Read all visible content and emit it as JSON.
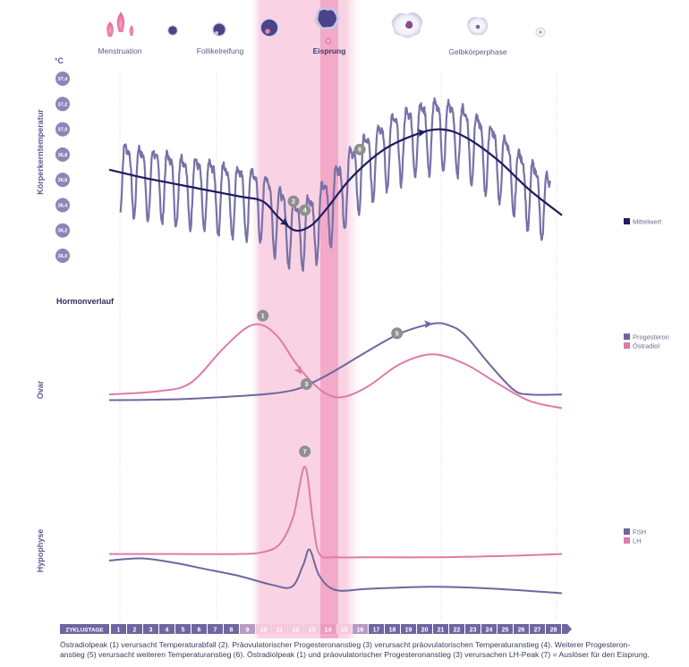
{
  "colors": {
    "temperature": "#7772a8",
    "mean": "#1f1c5e",
    "progesterone": "#6e66a0",
    "estradiol": "#e07aa8",
    "fsh": "#6e66a0",
    "lh": "#e07aa8",
    "ovulation_band": "#f9d3e3",
    "ovulation_core": "#f3a9c8",
    "badge": "#8f8f8f",
    "day_strip": "#6e66a0"
  },
  "phases": {
    "menstruation": "Menstruation",
    "follicle": "Follikelreifung",
    "ovulation": "Eisprung",
    "luteal": "Gelbkörperphase"
  },
  "chart_data": [
    {
      "type": "line",
      "title": "Körperkerntemperatur",
      "ylabel": "Körperkerntemperatur",
      "yunit": "°C",
      "yticks": [
        "37,4",
        "37,2",
        "37,0",
        "36,8",
        "36,6",
        "36,4",
        "36,2",
        "36,0"
      ],
      "ylim": [
        36.0,
        37.4
      ],
      "xlabel": "ZYKLUSTAGE",
      "xlim": [
        0,
        28
      ],
      "legend": [
        {
          "name": "Mittelwert",
          "color": "#1f1c5e"
        }
      ],
      "legend_position": "right",
      "series": [
        {
          "name": "Mittelwert",
          "x": [
            0,
            2,
            4,
            6,
            8,
            9.5,
            10.5,
            11.5,
            12.5,
            13.5,
            15,
            17,
            19,
            20.5,
            22,
            24,
            26,
            28
          ],
          "y": [
            36.68,
            36.62,
            36.57,
            36.52,
            36.47,
            36.43,
            36.3,
            36.2,
            36.24,
            36.38,
            36.62,
            36.84,
            36.96,
            37.0,
            36.94,
            36.76,
            36.52,
            36.32
          ]
        }
      ],
      "annotations": [
        {
          "label": "2",
          "x": 11.4,
          "y": 36.43
        },
        {
          "label": "4",
          "x": 12.1,
          "y": 36.36
        },
        {
          "label": "6",
          "x": 15.5,
          "y": 36.84
        }
      ]
    },
    {
      "type": "line",
      "title": "Hormonverlauf",
      "ylabel": "Ovar",
      "xlim": [
        0,
        28
      ],
      "legend_position": "right",
      "legend": [
        {
          "name": "Progesteron",
          "color": "#6e66a0"
        },
        {
          "name": "Östradiol",
          "color": "#e07aa8"
        }
      ],
      "series": [
        {
          "name": "Progesteron",
          "x": [
            0,
            4,
            8,
            10,
            11.5,
            12.5,
            14,
            16,
            18,
            20,
            21,
            22,
            23.5,
            25,
            26,
            28
          ],
          "y": [
            0.05,
            0.06,
            0.1,
            0.13,
            0.18,
            0.26,
            0.42,
            0.66,
            0.88,
            1.0,
            0.98,
            0.86,
            0.5,
            0.18,
            0.12,
            0.12
          ]
        },
        {
          "name": "Östradiol",
          "x": [
            0,
            3,
            5,
            7,
            8.5,
            9.5,
            10.5,
            11.5,
            12.5,
            13.5,
            14.5,
            16,
            18,
            20,
            22,
            24,
            26,
            28
          ],
          "y": [
            0.12,
            0.16,
            0.26,
            0.68,
            0.95,
            0.98,
            0.82,
            0.52,
            0.28,
            0.12,
            0.09,
            0.22,
            0.5,
            0.62,
            0.5,
            0.26,
            0.04,
            -0.05
          ]
        }
      ],
      "annotations": [
        {
          "label": "1",
          "x": 9.5,
          "y": 1.1
        },
        {
          "label": "3",
          "x": 12.2,
          "y": 0.25
        },
        {
          "label": "5",
          "x": 17.8,
          "y": 0.88
        }
      ]
    },
    {
      "type": "line",
      "title": "",
      "ylabel": "Hypophyse",
      "xlim": [
        0,
        28
      ],
      "legend_position": "right",
      "legend": [
        {
          "name": "FSH",
          "color": "#6e66a0"
        },
        {
          "name": "LH",
          "color": "#e07aa8"
        }
      ],
      "series": [
        {
          "name": "FSH",
          "x": [
            0,
            2,
            4,
            6,
            8,
            10,
            11.3,
            12,
            12.4,
            13,
            14,
            16,
            20,
            24,
            28
          ],
          "y": [
            0.14,
            0.16,
            0.12,
            0.06,
            0.0,
            -0.08,
            -0.1,
            0.1,
            0.24,
            0.0,
            -0.13,
            -0.12,
            -0.1,
            -0.12,
            -0.16
          ]
        },
        {
          "name": "LH",
          "x": [
            0,
            4,
            8,
            9.6,
            10.6,
            11.4,
            12.1,
            12.6,
            13,
            14,
            16,
            20,
            24,
            28
          ],
          "y": [
            0.2,
            0.2,
            0.2,
            0.22,
            0.3,
            0.55,
            1.0,
            0.5,
            0.2,
            0.17,
            0.17,
            0.17,
            0.18,
            0.2
          ]
        }
      ],
      "annotations": [
        {
          "label": "7",
          "x": 12.1,
          "y": 1.14
        }
      ]
    }
  ],
  "day_strip": {
    "label": "ZYKLUSTAGE",
    "days": [
      "1",
      "2",
      "3",
      "4",
      "5",
      "6",
      "7",
      "8",
      "9",
      "10",
      "11",
      "12",
      "13",
      "14",
      "15",
      "16",
      "17",
      "18",
      "19",
      "20",
      "21",
      "22",
      "23",
      "24",
      "25",
      "26",
      "27",
      "28"
    ]
  },
  "caption": {
    "line1": "Östradiolpeak (1) verursacht Temperaturabfall (2). Präovulatorischer Progesteronanstieg (3) verursacht präovulatorischen Temperaturanstieg (4). Weiterer Progesteron-",
    "line2": "anstieg (5) verursacht weiteren Temperaturanstieg (6). Östradiolpeak (1) und präovulatorischer Progesteronanstieg (3) verursachen LH-Peak (7) = Auslöser für den Eisprung."
  }
}
